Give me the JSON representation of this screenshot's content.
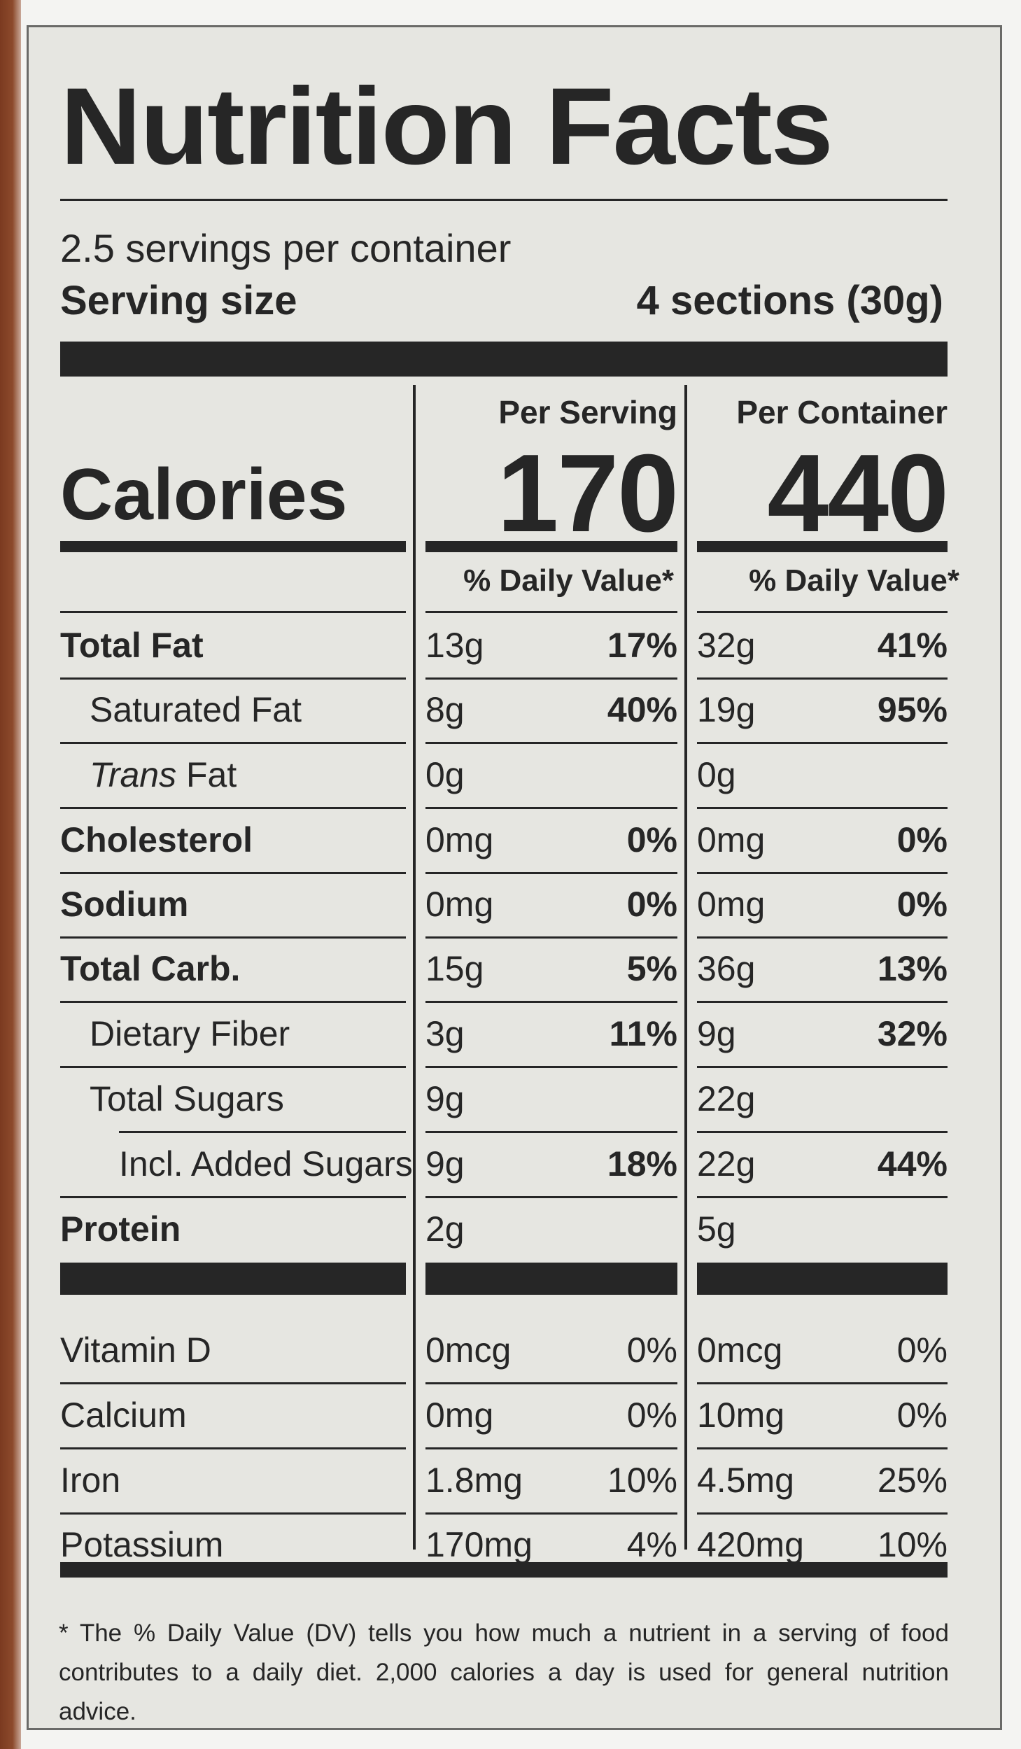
{
  "title": "Nutrition Facts",
  "servings_per_container": "2.5 servings per container",
  "serving_size_label": "Serving size",
  "serving_size_value": "4 sections (30g)",
  "calories_label": "Calories",
  "columns": {
    "per_serving": {
      "header": "Per Serving",
      "calories": "170",
      "dv_header": "% Daily Value*"
    },
    "per_container": {
      "header": "Per Container",
      "calories": "440",
      "dv_header": "% Daily Value*"
    }
  },
  "nutrients": [
    {
      "name": "Total Fat",
      "bold": true,
      "indent": 0,
      "serving_amount": "13g",
      "serving_dv": "17%",
      "container_amount": "32g",
      "container_dv": "41%"
    },
    {
      "name": "Saturated Fat",
      "bold": false,
      "indent": 1,
      "serving_amount": "8g",
      "serving_dv": "40%",
      "container_amount": "19g",
      "container_dv": "95%"
    },
    {
      "name_italic": "Trans",
      "name_rest": " Fat",
      "bold": false,
      "indent": 1,
      "serving_amount": "0g",
      "serving_dv": "",
      "container_amount": "0g",
      "container_dv": ""
    },
    {
      "name": "Cholesterol",
      "bold": true,
      "indent": 0,
      "serving_amount": "0mg",
      "serving_dv": "0%",
      "container_amount": "0mg",
      "container_dv": "0%"
    },
    {
      "name": "Sodium",
      "bold": true,
      "indent": 0,
      "serving_amount": "0mg",
      "serving_dv": "0%",
      "container_amount": "0mg",
      "container_dv": "0%"
    },
    {
      "name": "Total Carb.",
      "bold": true,
      "indent": 0,
      "serving_amount": "15g",
      "serving_dv": "5%",
      "container_amount": "36g",
      "container_dv": "13%"
    },
    {
      "name": "Dietary Fiber",
      "bold": false,
      "indent": 1,
      "serving_amount": "3g",
      "serving_dv": "11%",
      "container_amount": "9g",
      "container_dv": "32%"
    },
    {
      "name": "Total Sugars",
      "bold": false,
      "indent": 1,
      "serving_amount": "9g",
      "serving_dv": "",
      "container_amount": "22g",
      "container_dv": ""
    },
    {
      "name": "Incl. Added Sugars",
      "bold": false,
      "indent": 2,
      "serving_amount": "9g",
      "serving_dv": "18%",
      "container_amount": "22g",
      "container_dv": "44%"
    },
    {
      "name": "Protein",
      "bold": true,
      "indent": 0,
      "serving_amount": "2g",
      "serving_dv": "",
      "container_amount": "5g",
      "container_dv": ""
    }
  ],
  "vitamins": [
    {
      "name": "Vitamin D",
      "serving_amount": "0mcg",
      "serving_dv": "0%",
      "container_amount": "0mcg",
      "container_dv": "0%"
    },
    {
      "name": "Calcium",
      "serving_amount": "0mg",
      "serving_dv": "0%",
      "container_amount": "10mg",
      "container_dv": "0%"
    },
    {
      "name": "Iron",
      "serving_amount": "1.8mg",
      "serving_dv": "10%",
      "container_amount": "4.5mg",
      "container_dv": "25%"
    },
    {
      "name": "Potassium",
      "serving_amount": "170mg",
      "serving_dv": "4%",
      "container_amount": "420mg",
      "container_dv": "10%"
    }
  ],
  "footnote": "* The % Daily Value (DV) tells you how much a nutrient in a serving of food contributes to a daily diet. 2,000 calories a day is used for general nutrition advice."
}
